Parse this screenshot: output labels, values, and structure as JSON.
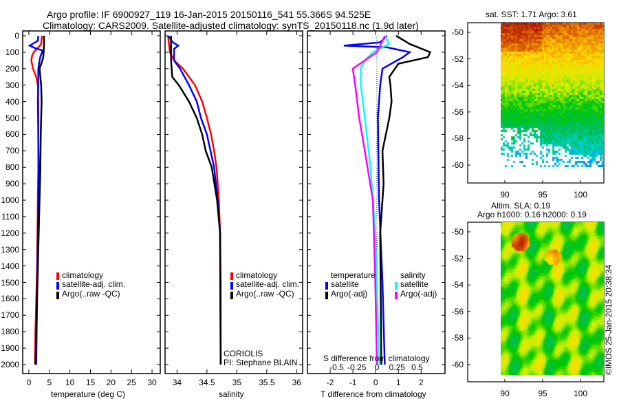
{
  "title": {
    "line1": "Argo profile: IF 6900927_119 16-Jan-2015 20150116_541 55.366S 94.525E",
    "line2": "Climatology: CARS2009. Satellite-adjusted climatology: synTS_20150118.nc (1.9d later)"
  },
  "credit": "©IMOS 25-Jan-2015 20:38:34",
  "colors": {
    "climatology": "#ff0000",
    "satellite": "#0000ff",
    "argo": "#000000",
    "s_satellite": "#00ffff",
    "s_argo": "#ff00ff"
  },
  "chart_data": [
    {
      "type": "line",
      "name": "temperature",
      "xlabel": "temperature (deg C)",
      "ylabel": "",
      "xlim": [
        -1.5,
        32
      ],
      "ylim": [
        2050,
        0
      ],
      "xticks": [
        "0",
        "5",
        "10",
        "15",
        "20",
        "25",
        "30"
      ],
      "yticks": [
        "0",
        "100",
        "200",
        "300",
        "400",
        "500",
        "600",
        "700",
        "800",
        "900",
        "1000",
        "1100",
        "1200",
        "1300",
        "1400",
        "1500",
        "1600",
        "1700",
        "1800",
        "1900",
        "2000"
      ],
      "legend": [
        "climatology",
        "satellite-adj. clim.",
        "Argo(..raw -QC)"
      ],
      "series": [
        {
          "name": "climatology",
          "depth": [
            0,
            50,
            80,
            100,
            120,
            150,
            200,
            250,
            300,
            400,
            600,
            800,
            1000,
            1400,
            1800,
            2000
          ],
          "values": [
            3.2,
            3.0,
            2.0,
            1.2,
            0.8,
            0.6,
            1.0,
            1.8,
            2.2,
            2.3,
            2.3,
            2.3,
            2.2,
            2.0,
            1.6,
            1.5
          ]
        },
        {
          "name": "satellite-adj. clim.",
          "depth": [
            0,
            30,
            60,
            75,
            90,
            120,
            150,
            200,
            300,
            400,
            600,
            800,
            1000,
            1400,
            1800,
            2000
          ],
          "values": [
            2.3,
            2.2,
            0.2,
            1.5,
            3.4,
            2.9,
            2.6,
            2.3,
            2.3,
            2.2,
            2.3,
            2.4,
            2.3,
            2.1,
            1.9,
            1.8
          ]
        },
        {
          "name": "Argo(..raw -QC)",
          "depth": [
            0,
            50,
            100,
            130,
            150,
            200,
            250,
            300,
            400,
            500,
            600,
            800,
            1000,
            1400,
            1800,
            2000
          ],
          "values": [
            3.7,
            3.7,
            3.6,
            3.5,
            3.3,
            2.6,
            2.8,
            3.0,
            3.1,
            3.0,
            2.9,
            2.8,
            2.6,
            2.2,
            1.8,
            1.6
          ]
        }
      ]
    },
    {
      "type": "line",
      "name": "salinity",
      "xlabel": "salinity",
      "xlim": [
        33.8,
        36.05
      ],
      "ylim": [
        2050,
        0
      ],
      "xticks": [
        "34",
        "34.5",
        "35",
        "35.5",
        "36"
      ],
      "legend": [
        "climatology",
        "satellite-adj. clim.",
        "Argo(..raw -QC)"
      ],
      "annotation": [
        "CORIOLIS",
        "PI: Stephane BLAIN"
      ],
      "series": [
        {
          "name": "climatology",
          "depth": [
            0,
            100,
            150,
            200,
            300,
            400,
            500,
            600,
            700,
            800,
            1000,
            1200,
            1500,
            2000
          ],
          "values": [
            33.85,
            33.88,
            33.95,
            34.1,
            34.3,
            34.42,
            34.5,
            34.57,
            34.62,
            34.66,
            34.7,
            34.72,
            34.73,
            34.73
          ]
        },
        {
          "name": "satellite-adj. clim.",
          "depth": [
            0,
            40,
            60,
            80,
            150,
            200,
            300,
            400,
            500,
            600,
            700,
            800,
            1000,
            1200,
            2000
          ],
          "values": [
            33.85,
            33.93,
            34.02,
            33.95,
            33.95,
            34.05,
            34.2,
            34.33,
            34.4,
            34.5,
            34.56,
            34.62,
            34.68,
            34.72,
            34.73
          ]
        },
        {
          "name": "Argo(..raw -QC)",
          "depth": [
            0,
            150,
            250,
            300,
            400,
            500,
            600,
            700,
            800,
            1000,
            1200,
            2000
          ],
          "values": [
            33.9,
            33.9,
            33.92,
            34.03,
            34.2,
            34.33,
            34.42,
            34.48,
            34.58,
            34.67,
            34.72,
            34.73
          ]
        }
      ]
    },
    {
      "type": "line",
      "name": "difference",
      "xlabel": "T difference from climatology",
      "x2label": "S difference from climatology",
      "xlim": [
        -3,
        3.05
      ],
      "ylim": [
        2050,
        0
      ],
      "xticks": [
        "-2",
        "-1",
        "0",
        "1",
        "2"
      ],
      "x2ticks": [
        "-0.5",
        "-0.25",
        "0",
        "0.25",
        "0.5"
      ],
      "legend": {
        "temperature": "temperature",
        "salinity": "salinity",
        "items": [
          "satellite",
          "Argo(-adj)",
          "satellite",
          "Argo(-adj)"
        ]
      },
      "series": [
        {
          "name": "T satellite",
          "unit": "T",
          "depth": [
            0,
            40,
            60,
            70,
            100,
            130,
            200,
            300,
            500,
            1000,
            1500,
            2000
          ],
          "values": [
            0.5,
            0.2,
            -1.4,
            0.5,
            1.5,
            1.2,
            0.3,
            0.2,
            0.1,
            0.15,
            0.3,
            0.4
          ]
        },
        {
          "name": "T Argo(-adj)",
          "unit": "T",
          "depth": [
            0,
            50,
            100,
            130,
            170,
            250,
            300,
            400,
            500,
            700,
            900,
            1200,
            2000
          ],
          "values": [
            0.9,
            1.5,
            2.4,
            2.3,
            1.0,
            0.6,
            0.65,
            0.7,
            0.6,
            0.3,
            0.35,
            0.2,
            0.25
          ]
        },
        {
          "name": "S satellite",
          "unit": "S",
          "depth": [
            0,
            50,
            100,
            150,
            200,
            300,
            500,
            800,
            1200,
            2000
          ],
          "values": [
            0.1,
            0.15,
            -0.05,
            -0.15,
            -0.2,
            -0.2,
            -0.15,
            -0.08,
            -0.02,
            0.03
          ]
        },
        {
          "name": "S Argo(-adj)",
          "unit": "S",
          "depth": [
            0,
            100,
            200,
            300,
            500,
            700,
            1000,
            1500,
            2000
          ],
          "values": [
            0.1,
            0.0,
            -0.3,
            -0.27,
            -0.22,
            -0.15,
            -0.05,
            -0.02,
            0.0
          ]
        }
      ]
    },
    {
      "type": "heatmap",
      "name": "sst-map",
      "title": "sat. SST: 1.71  Argo: 3.61",
      "xticks": [
        "90",
        "95",
        "100"
      ],
      "yticks": [
        "-50",
        "-52",
        "-54",
        "-56",
        "-58",
        "-60"
      ],
      "float_position": [
        94.525,
        -55.366
      ]
    },
    {
      "type": "heatmap",
      "name": "sla-map",
      "title": [
        "Altim. SLA: 0.19",
        "Argo h1000: 0.16 h2000: 0.19"
      ],
      "xticks": [
        "90",
        "95",
        "100"
      ],
      "yticks": [
        "-50",
        "-52",
        "-54",
        "-56",
        "-58",
        "-60"
      ],
      "float_position": [
        94.525,
        -55.366
      ]
    }
  ]
}
